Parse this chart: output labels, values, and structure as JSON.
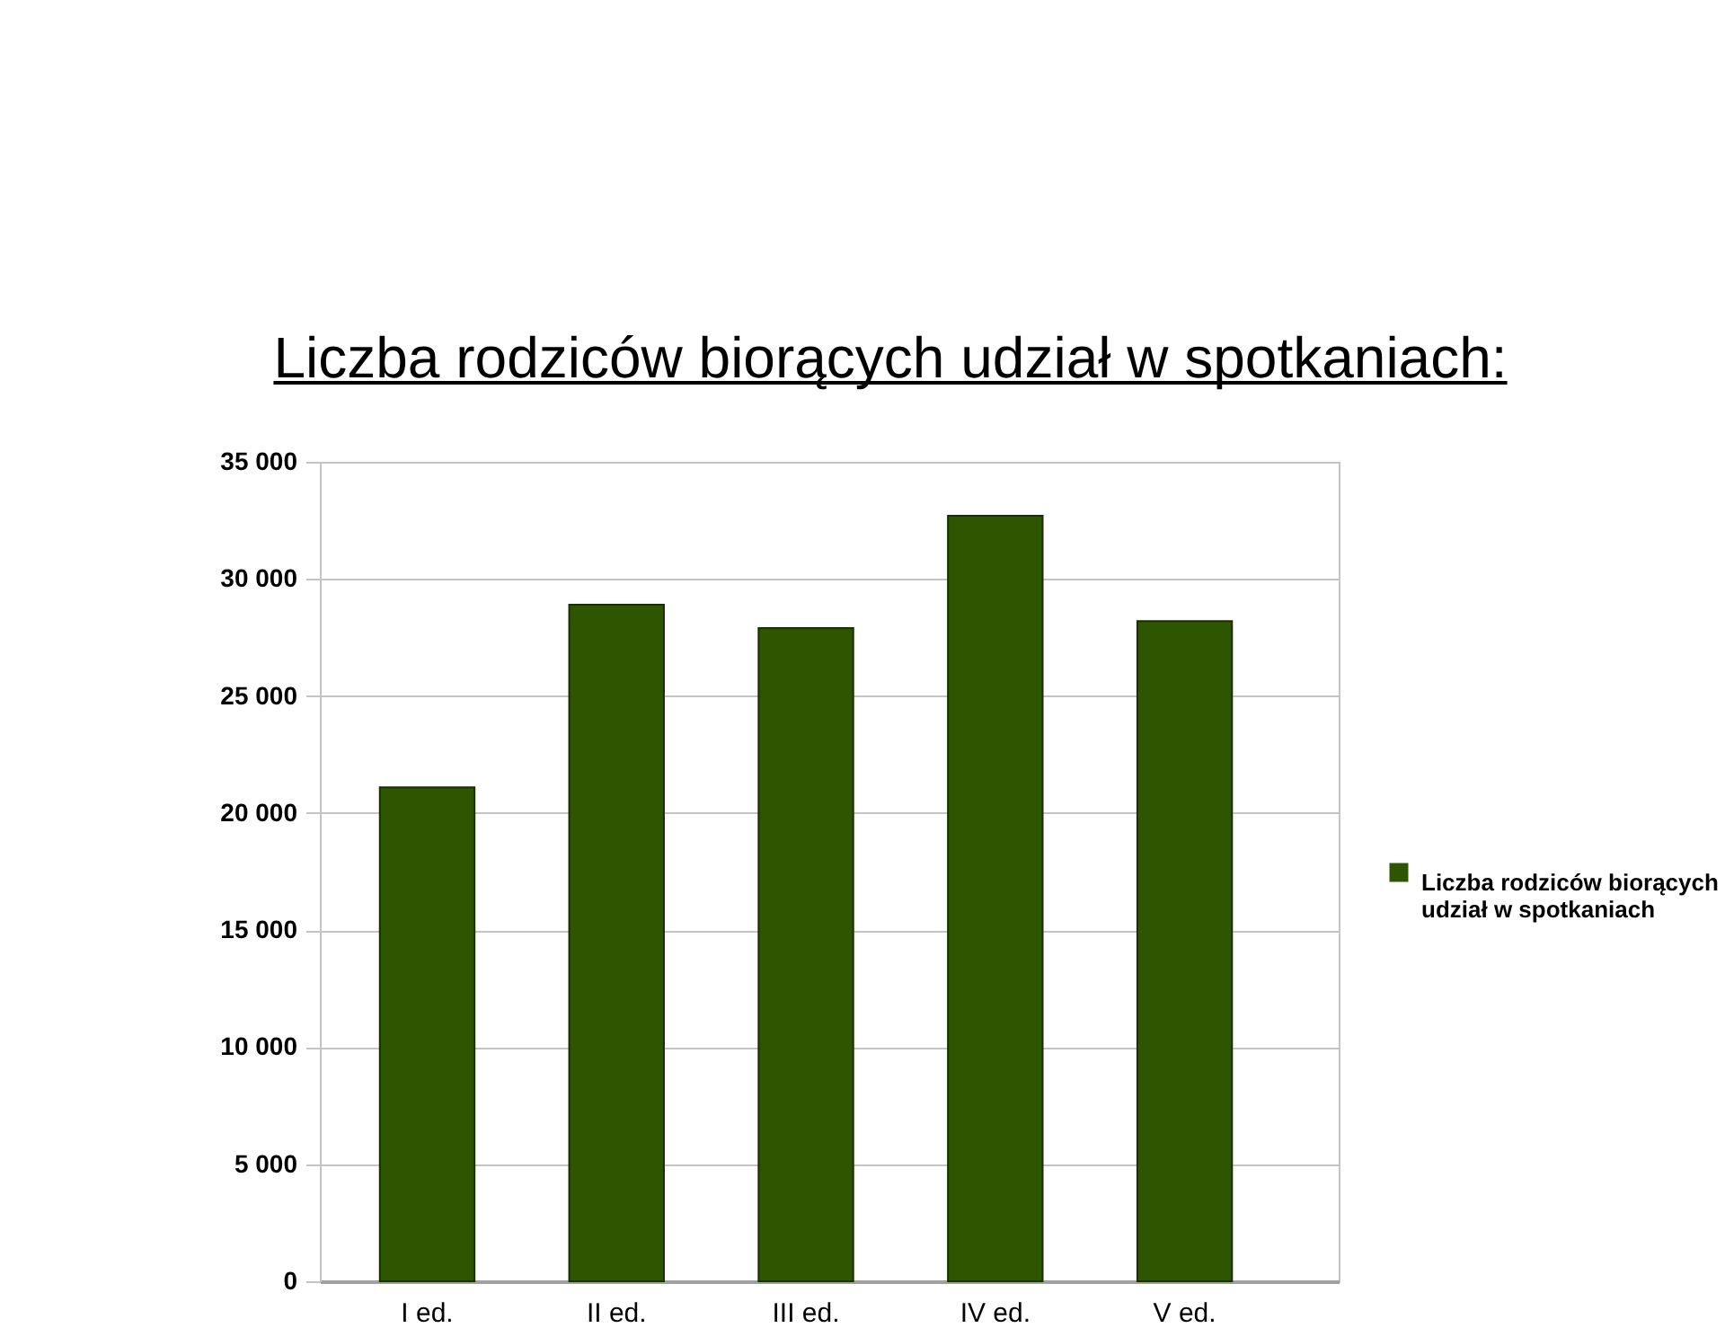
{
  "chart_data": {
    "type": "bar",
    "title": "Liczba rodziców biorących udział w spotkaniach:",
    "categories": [
      "I ed.",
      "II ed.",
      "III ed.",
      "IV ed.",
      "V ed."
    ],
    "series": [
      {
        "name": "Liczba rodziców biorących udział w spotkaniach",
        "color": "#2e5500",
        "values": [
          21100,
          28900,
          27900,
          32700,
          28200
        ]
      }
    ],
    "ylim": [
      0,
      35000
    ],
    "yticks": [
      0,
      {
        "value": 5000,
        "label": "5 000"
      },
      {
        "value": 10000,
        "label": "10 000"
      },
      {
        "value": 15000,
        "label": "15 000"
      },
      {
        "value": 20000,
        "label": "20 000"
      },
      {
        "value": 25000,
        "label": "25 000"
      },
      {
        "value": 30000,
        "label": "30 000"
      },
      {
        "value": 35000,
        "label": "35 000"
      }
    ],
    "grid": "y",
    "legend": "right"
  }
}
